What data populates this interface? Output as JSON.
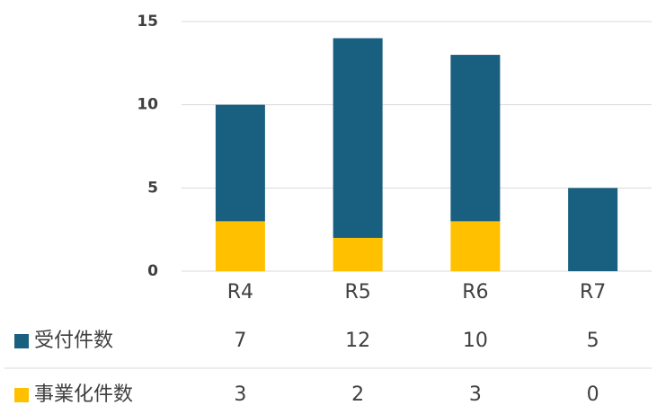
{
  "chart_data": {
    "type": "stacked_bar",
    "categories": [
      "R4",
      "R5",
      "R6",
      "R7"
    ],
    "series": [
      {
        "name": "受付件数",
        "color": "#185f80",
        "values": [
          7,
          12,
          10,
          5
        ]
      },
      {
        "name": "事業化件数",
        "color": "#ffc000",
        "values": [
          3,
          2,
          3,
          0
        ]
      }
    ],
    "ylim": [
      0,
      15
    ],
    "yticks": [
      0,
      5,
      10,
      15
    ],
    "grid": true
  }
}
